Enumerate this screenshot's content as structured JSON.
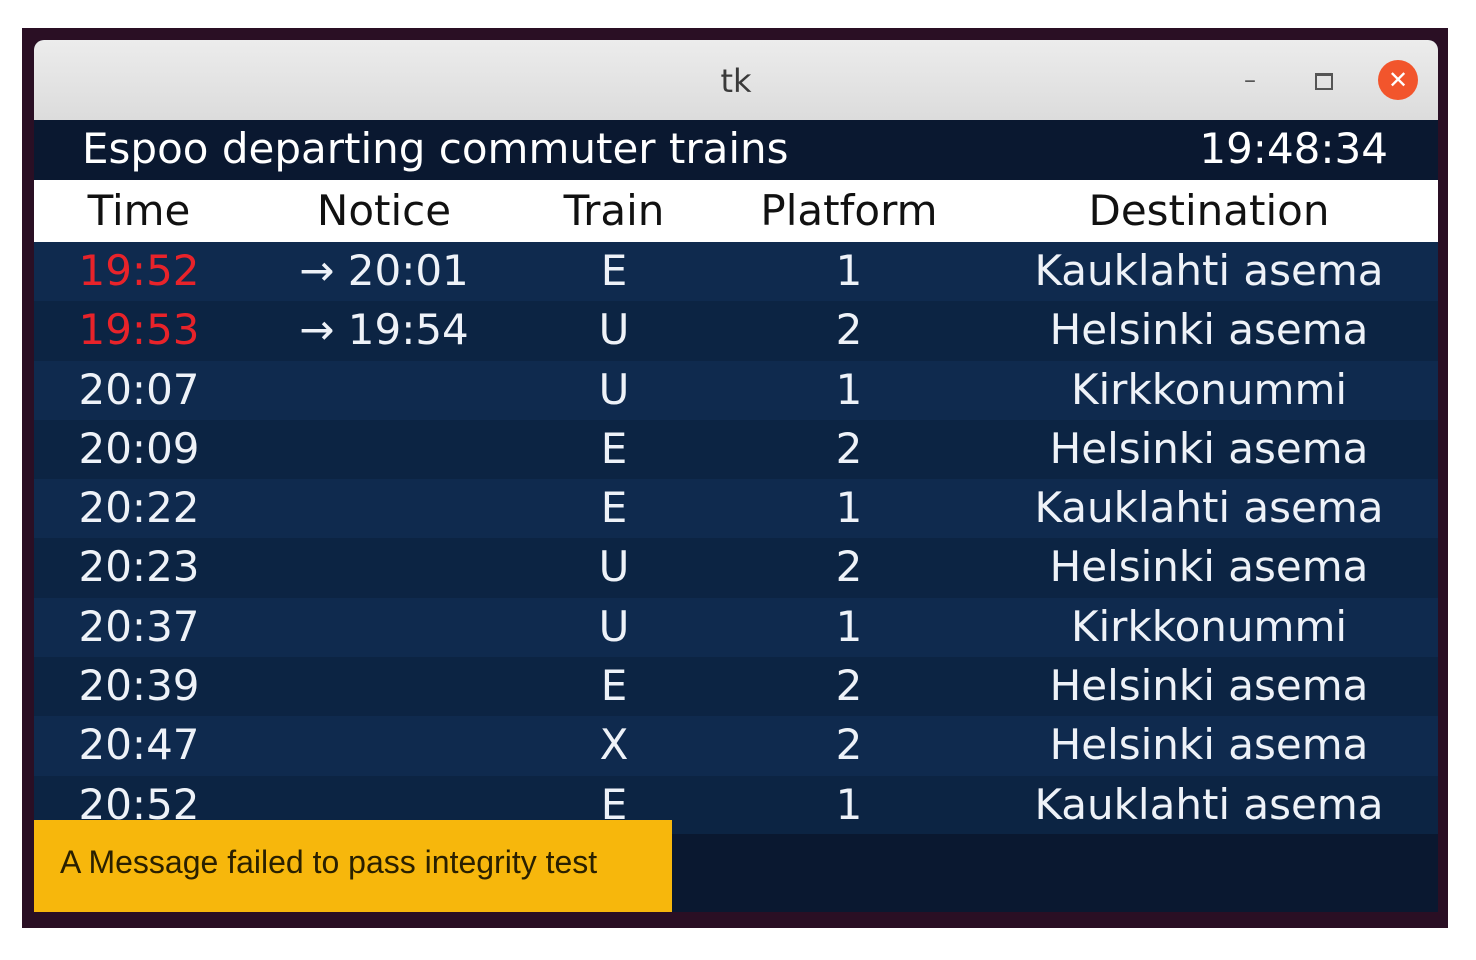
{
  "window": {
    "title": "tk",
    "minimize_glyph": "–",
    "close_glyph": "✕"
  },
  "header": {
    "title": "Espoo departing commuter trains",
    "clock": "19:48:34"
  },
  "columns": {
    "time": "Time",
    "notice": "Notice",
    "train": "Train",
    "platform": "Platform",
    "destination": "Destination"
  },
  "rows": [
    {
      "time": "19:52",
      "notice": "→ 20:01",
      "train": "E",
      "platform": "1",
      "destination": "Kauklahti asema",
      "late": true
    },
    {
      "time": "19:53",
      "notice": "→ 19:54",
      "train": "U",
      "platform": "2",
      "destination": "Helsinki asema",
      "late": true
    },
    {
      "time": "20:07",
      "notice": "",
      "train": "U",
      "platform": "1",
      "destination": "Kirkkonummi",
      "late": false
    },
    {
      "time": "20:09",
      "notice": "",
      "train": "E",
      "platform": "2",
      "destination": "Helsinki asema",
      "late": false
    },
    {
      "time": "20:22",
      "notice": "",
      "train": "E",
      "platform": "1",
      "destination": "Kauklahti asema",
      "late": false
    },
    {
      "time": "20:23",
      "notice": "",
      "train": "U",
      "platform": "2",
      "destination": "Helsinki asema",
      "late": false
    },
    {
      "time": "20:37",
      "notice": "",
      "train": "U",
      "platform": "1",
      "destination": "Kirkkonummi",
      "late": false
    },
    {
      "time": "20:39",
      "notice": "",
      "train": "E",
      "platform": "2",
      "destination": "Helsinki asema",
      "late": false
    },
    {
      "time": "20:47",
      "notice": "",
      "train": "X",
      "platform": "2",
      "destination": "Helsinki asema",
      "late": false
    },
    {
      "time": "20:52",
      "notice": "",
      "train": "E",
      "platform": "1",
      "destination": "Kauklahti asema",
      "late": false
    }
  ],
  "toast": {
    "message": "A Message failed to pass integrity test"
  },
  "colors": {
    "late_time": "#e8232a",
    "toast_bg": "#f7b70c",
    "board_bg": "#0c1b32",
    "close_button": "#f2552c"
  }
}
